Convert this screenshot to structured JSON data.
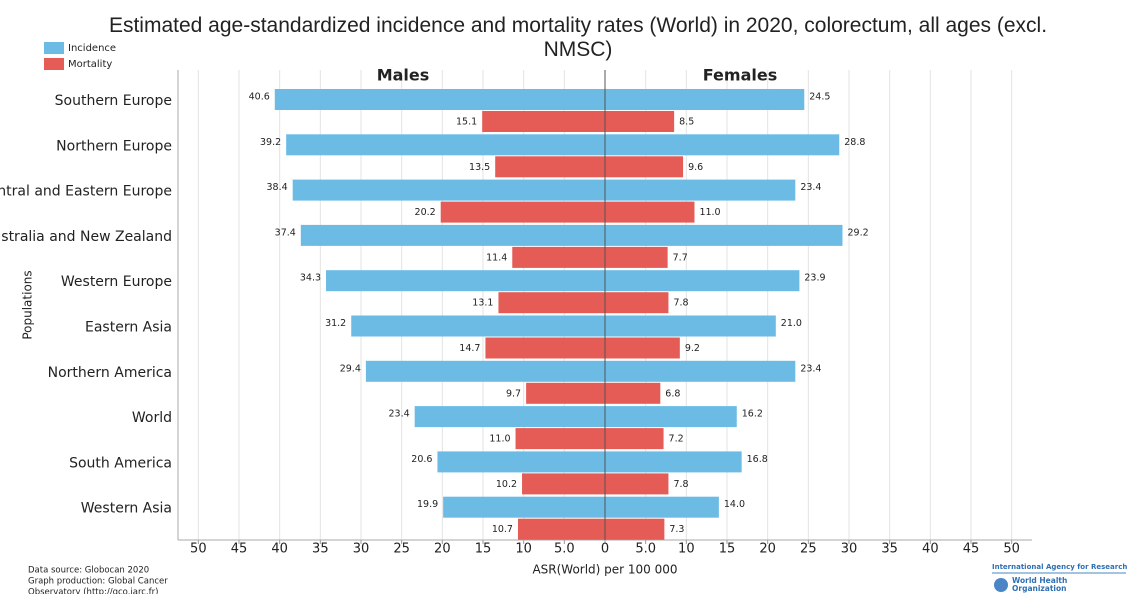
{
  "chart_data": {
    "type": "butterfly-bar",
    "title": "Estimated age-standardized incidence and mortality rates (World) in 2020, colorectum, all ages (excl. NMSC)",
    "xlabel": "ASR(World) per 100 000",
    "ylabel": "Populations",
    "categories": [
      "Southern Europe",
      "Northern Europe",
      "Central and Eastern Europe",
      "Australia and New Zealand",
      "Western Europe",
      "Eastern Asia",
      "Northern America",
      "World",
      "South America",
      "Western Asia"
    ],
    "panels": [
      {
        "title": "Males",
        "series": [
          {
            "name": "Incidence",
            "color": "#6bbbe5",
            "values": [
              40.6,
              39.2,
              38.4,
              37.4,
              34.3,
              31.2,
              29.4,
              23.4,
              20.6,
              19.9
            ]
          },
          {
            "name": "Mortality",
            "color": "#e55b55",
            "values": [
              15.1,
              13.5,
              20.2,
              11.4,
              13.1,
              14.7,
              9.7,
              11.0,
              10.2,
              10.7
            ],
            "value_labels": [
              "15.1",
              "13.5",
              "20.2",
              "11.4",
              "13.1",
              "14.7",
              "9.7",
              "11.0",
              "10.2",
              "10.7"
            ]
          }
        ]
      },
      {
        "title": "Females",
        "series": [
          {
            "name": "Incidence",
            "color": "#6bbbe5",
            "values": [
              24.5,
              28.8,
              23.4,
              29.2,
              23.9,
              21.0,
              23.4,
              16.2,
              16.8,
              14.0
            ],
            "value_labels": [
              "24.5",
              "28.8",
              "23.4",
              "29.2",
              "23.9",
              "21.0",
              "23.4",
              "16.2",
              "16.8",
              "14.0"
            ]
          },
          {
            "name": "Mortality",
            "color": "#e55b55",
            "values": [
              8.5,
              9.6,
              11.0,
              7.7,
              7.8,
              9.2,
              6.8,
              7.2,
              7.8,
              7.3
            ],
            "value_labels": [
              "8.5",
              "9.6",
              "11.0",
              "7.7",
              "7.8",
              "9.2",
              "6.8",
              "7.2",
              "7.8",
              "7.3"
            ]
          }
        ]
      }
    ],
    "xlim": [
      -52.5,
      52.5
    ],
    "xticks": [
      {
        "value": -50,
        "label": "50"
      },
      {
        "value": -45,
        "label": "45"
      },
      {
        "value": -40,
        "label": "40"
      },
      {
        "value": -35,
        "label": "35"
      },
      {
        "value": -30,
        "label": "30"
      },
      {
        "value": -25,
        "label": "25"
      },
      {
        "value": -20,
        "label": "20"
      },
      {
        "value": -15,
        "label": "15"
      },
      {
        "value": -10,
        "label": "10"
      },
      {
        "value": -5,
        "label": "5.0"
      },
      0,
      {
        "value": 5,
        "label": "5.0"
      },
      10,
      15,
      20,
      25,
      30,
      35,
      40,
      45,
      50
    ],
    "grid": true,
    "legend": "top-left",
    "footer_left": [
      "Data source: Globocan 2020",
      "Graph production: Global Cancer",
      "Observatory (http://gco.iarc.fr)"
    ],
    "footer_right": [
      "International Agency for Research on Cancer",
      "World Health",
      "Organization"
    ]
  }
}
